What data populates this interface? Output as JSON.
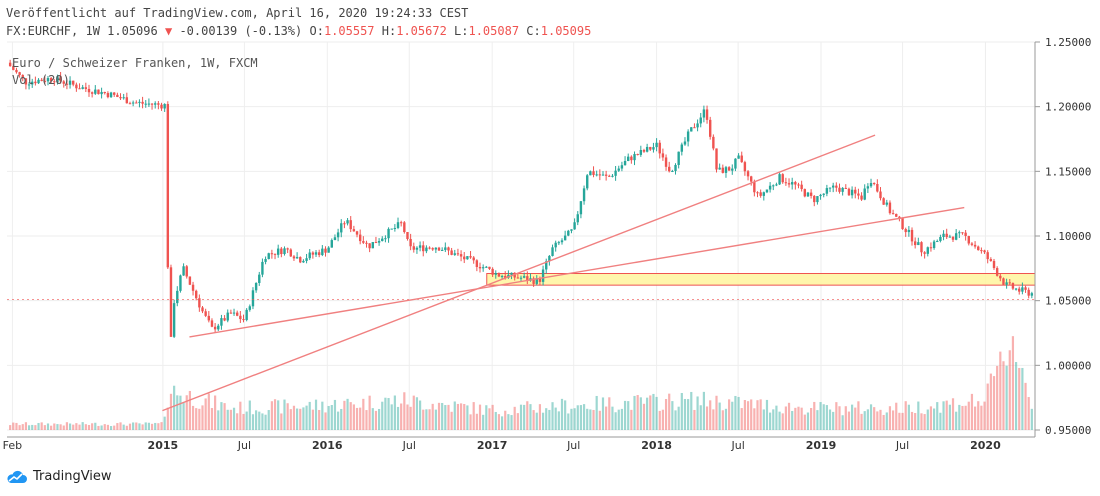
{
  "header": {
    "published": "Veröffentlicht auf TradingView.com, April 16, 2020 19:24:33 CEST",
    "symbol": "FX:EURCHF, 1W",
    "last": "1.05096",
    "change_arrow": "▼",
    "change": "-0.00139 (-0.13%)",
    "o_label": "O:",
    "o": "1.05557",
    "h_label": "H:",
    "h": "1.05672",
    "l_label": "L:",
    "l": "1.05087",
    "c_label": "C:",
    "c": "1.05095"
  },
  "legend": {
    "title": "Euro / Schweizer Franken, 1W, FXCM",
    "volume": "Vol (20)"
  },
  "brand": {
    "name": "TradingView",
    "icon": "tradingview-cloud-icon"
  },
  "colors": {
    "up": "#26a69a",
    "down": "#ef5350",
    "wick": "#555555",
    "trendline": "#f08080",
    "zone_fill": "#fff59d",
    "zone_border": "#ef5350",
    "grid": "#eeeeee"
  },
  "chart_data": {
    "type": "candlestick",
    "title": "Euro / Schweizer Franken, 1W, FXCM",
    "x_axis": {
      "ticks": [
        "Feb",
        "2015",
        "Jul",
        "2016",
        "Jul",
        "2017",
        "Jul",
        "2018",
        "Jul",
        "2019",
        "Jul",
        "2020"
      ],
      "tick_dates": [
        "2014-02-01",
        "2015-01-01",
        "2015-07-01",
        "2016-01-01",
        "2016-07-01",
        "2017-01-01",
        "2017-07-01",
        "2018-01-01",
        "2018-07-01",
        "2019-01-01",
        "2019-07-01",
        "2020-01-01"
      ],
      "bold": [
        "2015",
        "2016",
        "2017",
        "2018",
        "2019",
        "2020"
      ],
      "range": [
        "2014-01-20",
        "2020-04-20"
      ]
    },
    "y_axis": {
      "ticks": [
        "0.95000",
        "1.00000",
        "1.05000",
        "1.10000",
        "1.15000",
        "1.20000",
        "1.25000"
      ],
      "range": [
        0.95,
        1.25
      ],
      "position": "right"
    },
    "grid": true,
    "price_path": [
      [
        "2014-01-20",
        1.234
      ],
      [
        "2014-03-01",
        1.219
      ],
      [
        "2014-05-01",
        1.222
      ],
      [
        "2014-07-01",
        1.215
      ],
      [
        "2014-09-01",
        1.21
      ],
      [
        "2014-11-01",
        1.203
      ],
      [
        "2015-01-08",
        1.201
      ],
      [
        "2015-01-15",
        0.985
      ],
      [
        "2015-01-22",
        1.045
      ],
      [
        "2015-02-15",
        1.075
      ],
      [
        "2015-04-01",
        1.04
      ],
      [
        "2015-04-20",
        1.028
      ],
      [
        "2015-06-01",
        1.04
      ],
      [
        "2015-07-01",
        1.035
      ],
      [
        "2015-08-15",
        1.085
      ],
      [
        "2015-10-01",
        1.09
      ],
      [
        "2015-11-01",
        1.082
      ],
      [
        "2016-01-01",
        1.09
      ],
      [
        "2016-02-10",
        1.112
      ],
      [
        "2016-04-01",
        1.092
      ],
      [
        "2016-06-15",
        1.11
      ],
      [
        "2016-07-01",
        1.09
      ],
      [
        "2016-09-01",
        1.092
      ],
      [
        "2016-10-15",
        1.085
      ],
      [
        "2016-12-01",
        1.078
      ],
      [
        "2017-01-15",
        1.07
      ],
      [
        "2017-03-01",
        1.068
      ],
      [
        "2017-04-15",
        1.065
      ],
      [
        "2017-05-15",
        1.09
      ],
      [
        "2017-07-01",
        1.105
      ],
      [
        "2017-08-01",
        1.15
      ],
      [
        "2017-09-15",
        1.145
      ],
      [
        "2017-11-01",
        1.16
      ],
      [
        "2018-01-01",
        1.17
      ],
      [
        "2018-02-01",
        1.15
      ],
      [
        "2018-03-15",
        1.18
      ],
      [
        "2018-04-20",
        1.198
      ],
      [
        "2018-05-15",
        1.15
      ],
      [
        "2018-06-15",
        1.152
      ],
      [
        "2018-07-01",
        1.16
      ],
      [
        "2018-08-15",
        1.13
      ],
      [
        "2018-10-01",
        1.145
      ],
      [
        "2018-11-01",
        1.14
      ],
      [
        "2018-12-15",
        1.128
      ],
      [
        "2019-02-01",
        1.138
      ],
      [
        "2019-04-01",
        1.13
      ],
      [
        "2019-04-20",
        1.145
      ],
      [
        "2019-06-01",
        1.12
      ],
      [
        "2019-07-01",
        1.108
      ],
      [
        "2019-08-15",
        1.088
      ],
      [
        "2019-10-01",
        1.1
      ],
      [
        "2019-11-15",
        1.1
      ],
      [
        "2020-01-01",
        1.085
      ],
      [
        "2020-02-15",
        1.062
      ],
      [
        "2020-03-15",
        1.058
      ],
      [
        "2020-04-13",
        1.0556
      ]
    ],
    "volume_profile": [
      [
        "2014-01-20",
        0.06
      ],
      [
        "2014-12-31",
        0.06
      ],
      [
        "2015-01-15",
        0.4
      ],
      [
        "2015-06-01",
        0.22
      ],
      [
        "2016-01-01",
        0.25
      ],
      [
        "2016-06-15",
        0.3
      ],
      [
        "2017-01-01",
        0.2
      ],
      [
        "2017-07-01",
        0.25
      ],
      [
        "2018-04-01",
        0.3
      ],
      [
        "2018-12-01",
        0.22
      ],
      [
        "2019-07-01",
        0.22
      ],
      [
        "2020-01-01",
        0.3
      ],
      [
        "2020-03-01",
        0.95
      ],
      [
        "2020-04-13",
        0.25
      ]
    ],
    "trendlines": [
      {
        "from": [
          "2015-03-01",
          1.022
        ],
        "to": [
          "2019-11-15",
          1.122
        ]
      },
      {
        "from": [
          "2014-12-31",
          0.965
        ],
        "to": [
          "2019-05-01",
          1.178
        ]
      }
    ],
    "zones": [
      {
        "from": "2016-12-20",
        "to": "2020-04-20",
        "low": 1.062,
        "high": 1.071
      }
    ]
  }
}
